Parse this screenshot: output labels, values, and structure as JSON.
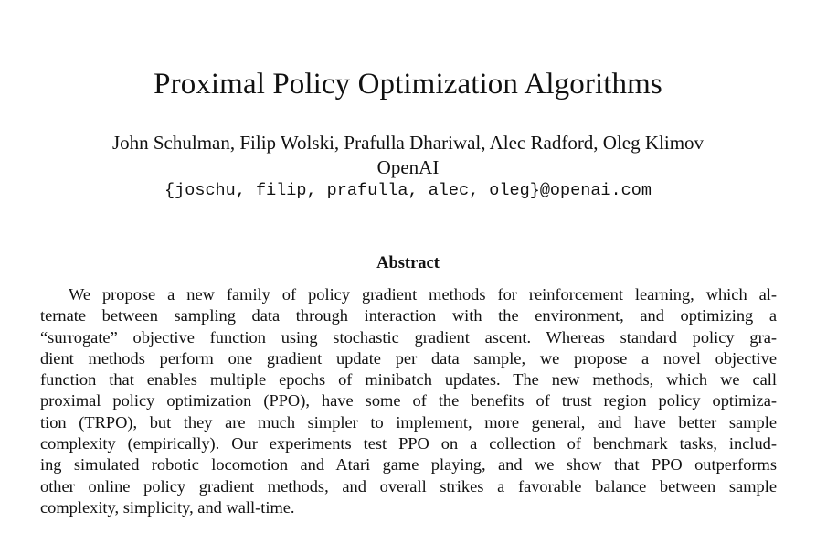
{
  "paper": {
    "title": "Proximal Policy Optimization Algorithms",
    "authors": "John Schulman, Filip Wolski, Prafulla Dhariwal, Alec Radford, Oleg Klimov",
    "affiliation": "OpenAI",
    "emails": "{joschu, filip, prafulla, alec, oleg}@openai.com"
  },
  "abstract": {
    "heading": "Abstract",
    "lines": [
      "We propose a new family of policy gradient methods for reinforcement learning, which al-",
      "ternate between sampling data through interaction with the environment, and optimizing a",
      "“surrogate” objective function using stochastic gradient ascent. Whereas standard policy gra-",
      "dient methods perform one gradient update per data sample, we propose a novel objective",
      "function that enables multiple epochs of minibatch updates. The new methods, which we call",
      "proximal policy optimization (PPO), have some of the benefits of trust region policy optimiza-",
      "tion (TRPO), but they are much simpler to implement, more general, and have better sample",
      "complexity (empirically). Our experiments test PPO on a collection of benchmark tasks, includ-",
      "ing simulated robotic locomotion and Atari game playing, and we show that PPO outperforms",
      "other online policy gradient methods, and overall strikes a favorable balance between sample",
      "complexity, simplicity, and wall-time."
    ]
  }
}
